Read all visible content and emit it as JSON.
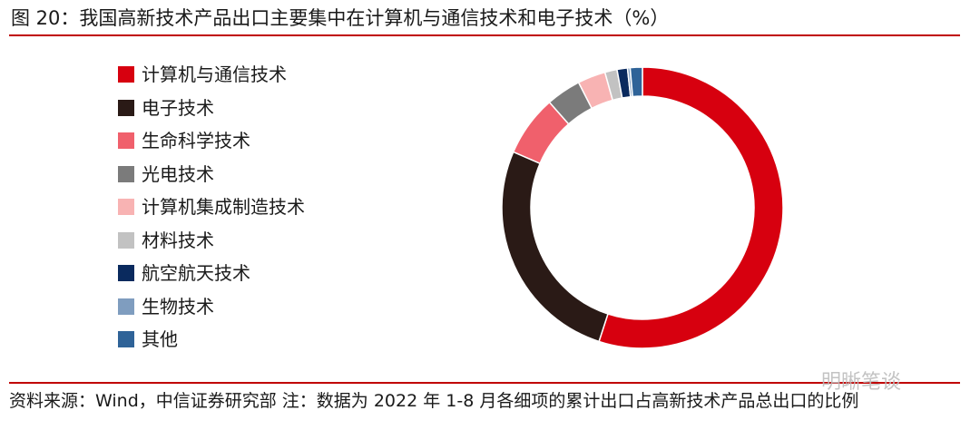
{
  "title": "图 20：我国高新技术产品出口主要集中在计算机与通信技术和电子技术（%）",
  "footer": "资料来源：Wind，中信证券研究部  注：数据为 2022 年 1-8 月各细项的累计出口占高新技术产品总出口的比例",
  "watermark": "明晰笔谈",
  "colors": {
    "rule": "#c00000"
  },
  "chart_data": {
    "type": "pie",
    "donut": true,
    "legend_position": "left",
    "series": [
      {
        "name": "计算机与通信技术",
        "value": 55.0,
        "color": "#d7000f"
      },
      {
        "name": "电子技术",
        "value": 26.5,
        "color": "#2a1a16"
      },
      {
        "name": "生命科学技术",
        "value": 7.0,
        "color": "#f0606c"
      },
      {
        "name": "光电技术",
        "value": 4.0,
        "color": "#7b7b7b"
      },
      {
        "name": "计算机集成制造技术",
        "value": 3.2,
        "color": "#f8b3b3"
      },
      {
        "name": "材料技术",
        "value": 1.4,
        "color": "#c2c2c2"
      },
      {
        "name": "航空航天技术",
        "value": 1.2,
        "color": "#0a2a5e"
      },
      {
        "name": "生物技术",
        "value": 0.3,
        "color": "#7f9dbf"
      },
      {
        "name": "其他",
        "value": 1.4,
        "color": "#2f6398"
      }
    ]
  }
}
